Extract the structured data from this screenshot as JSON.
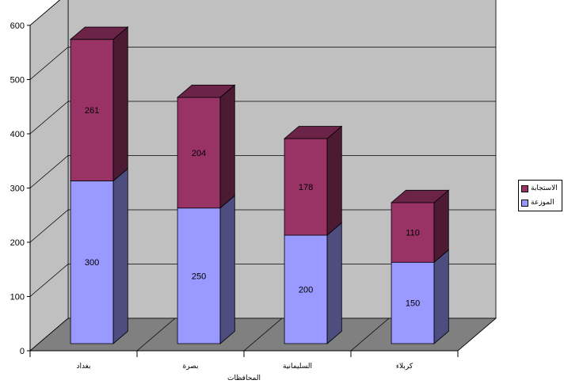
{
  "chart_data": {
    "type": "bar",
    "stacked": true,
    "three_d": true,
    "categories": [
      "بغداد",
      "بصرة",
      "السليمانية",
      "كربلاء"
    ],
    "series": [
      {
        "name": "الموزعة",
        "values": [
          300,
          250,
          200,
          150
        ],
        "color": "#9999FF"
      },
      {
        "name": "الاستجابة",
        "values": [
          261,
          204,
          178,
          110
        ],
        "color": "#993366"
      }
    ],
    "xlabel": "المحافظات",
    "ylabel": "",
    "ylim": [
      0,
      600
    ],
    "yticks": [
      0,
      100,
      200,
      300,
      400,
      500,
      600
    ],
    "grid": true,
    "legend_position": "right"
  },
  "colors": {
    "back_wall": "#C0C0C0",
    "floor": "#808080",
    "gridline": "#000000"
  }
}
